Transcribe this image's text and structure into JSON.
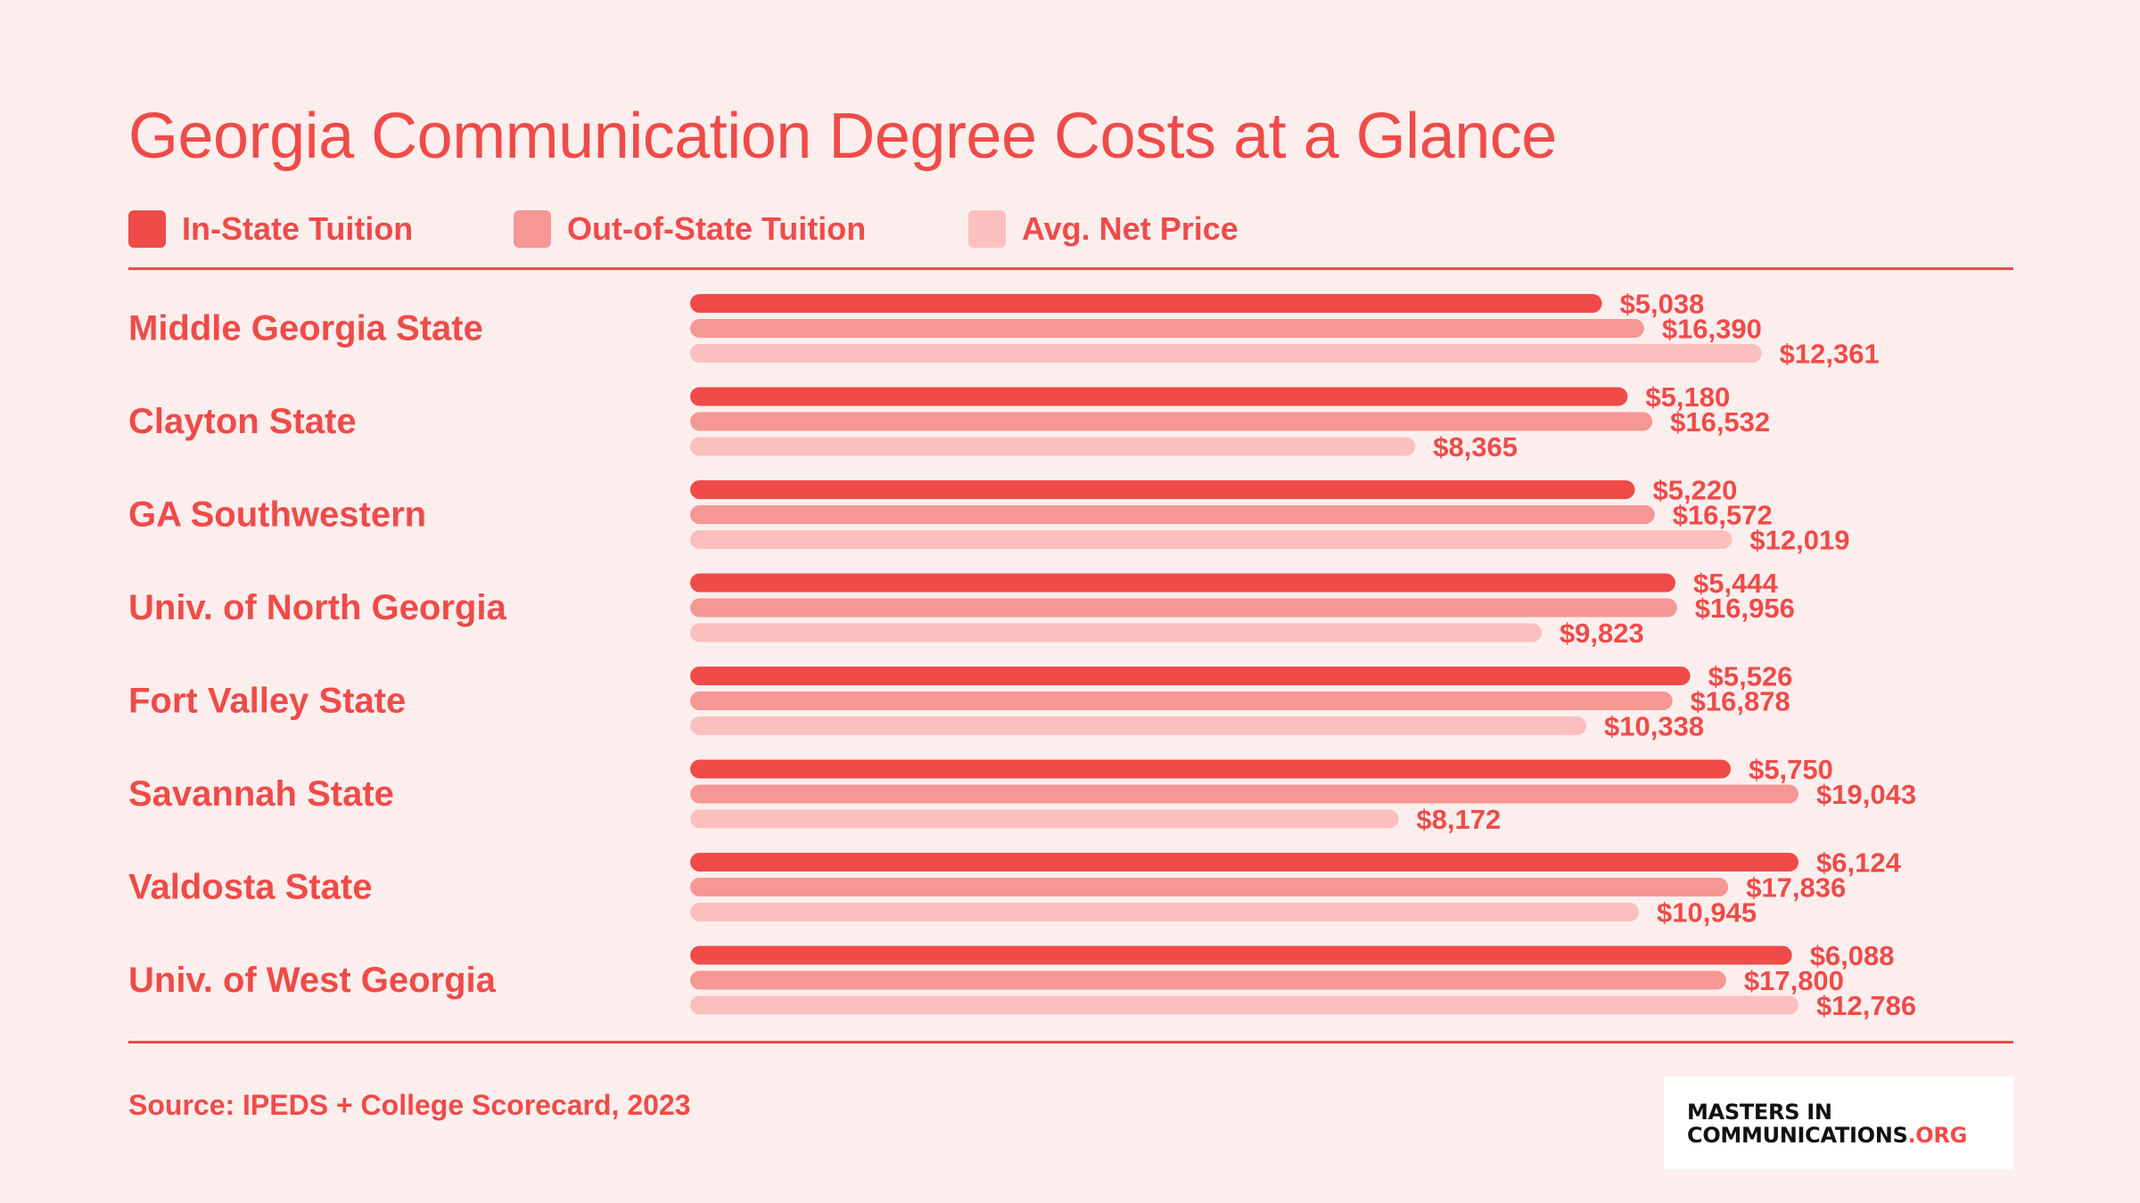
{
  "title": "Georgia Communication Degree Costs at a Glance",
  "legend": [
    {
      "label": "In-State Tuition",
      "color": "#ef4b48"
    },
    {
      "label": "Out-of-State Tuition",
      "color": "#f59794"
    },
    {
      "label": "Avg. Net Price",
      "color": "#fbbfbd"
    }
  ],
  "source": "Source: IPEDS + College Scorecard, 2023",
  "logo": {
    "line1": "MASTERS IN",
    "line2": "COMMUNICATIONS",
    "suffix": ".ORG"
  },
  "chart_data": {
    "type": "bar",
    "orientation": "horizontal",
    "title": "Georgia Communication Degree Costs at a Glance",
    "categories": [
      "Middle Georgia State",
      "Clayton State",
      "GA Southwestern",
      "Univ. of North Georgia",
      "Fort Valley State",
      "Savannah State",
      "Valdosta State",
      "Univ. of West Georgia"
    ],
    "series": [
      {
        "name": "In-State Tuition",
        "color": "#ef4b48",
        "values": [
          5038,
          5180,
          5220,
          5444,
          5526,
          5750,
          6124,
          6088
        ],
        "labels": [
          "$5,038",
          "$5,180",
          "$5,220",
          "$5,444",
          "$5,526",
          "$5,750",
          "$6,124",
          "$6,088"
        ]
      },
      {
        "name": "Out-of-State Tuition",
        "color": "#f59794",
        "values": [
          16390,
          16532,
          16572,
          16956,
          16878,
          19043,
          17836,
          17800
        ],
        "labels": [
          "$16,390",
          "$16,532",
          "$16,572",
          "$16,956",
          "$16,878",
          "$19,043",
          "$17,836",
          "$17,800"
        ]
      },
      {
        "name": "Avg. Net Price",
        "color": "#fbbfbd",
        "values": [
          12361,
          8365,
          12019,
          9823,
          10338,
          8172,
          10945,
          12786
        ],
        "labels": [
          "$12,361",
          "$8,365",
          "$12,019",
          "$9,823",
          "$10,338",
          "$8,172",
          "$10,945",
          "$12,786"
        ]
      }
    ],
    "scale_note": "each series scaled to its own maximum",
    "xlabel": "",
    "ylabel": "",
    "grid": false,
    "legend_position": "top-left"
  }
}
